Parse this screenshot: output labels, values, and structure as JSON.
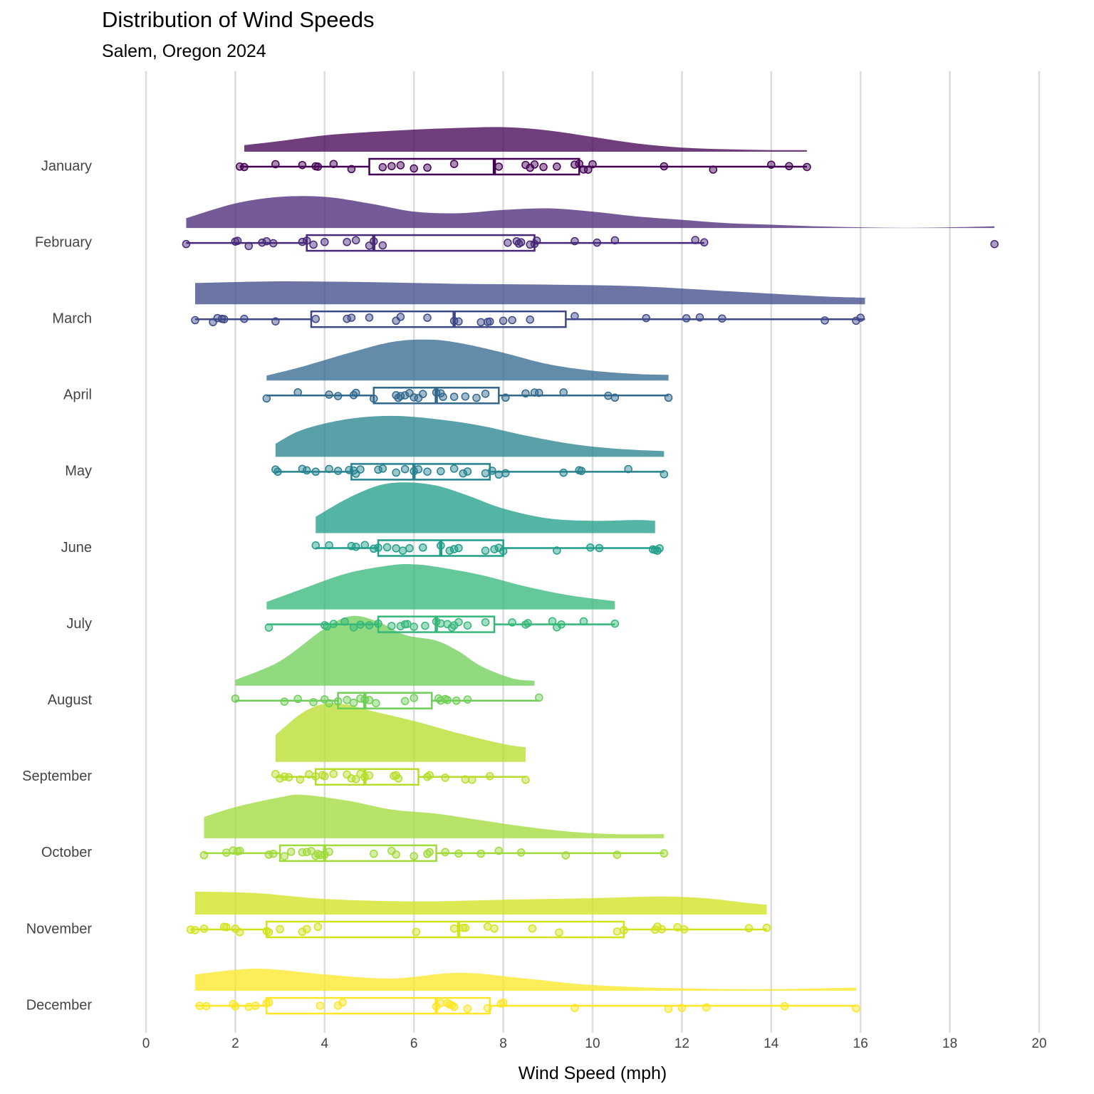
{
  "chart_data": {
    "type": "raincloud",
    "title": "Distribution of Wind Speeds",
    "subtitle": "Salem, Oregon 2024",
    "xlabel": "Wind Speed (mph)",
    "ylabel": "",
    "xlim": [
      0,
      20
    ],
    "xticks": [
      0,
      2,
      4,
      6,
      8,
      10,
      12,
      14,
      16,
      18,
      20
    ],
    "grid": "vertical",
    "legend": "none",
    "series": [
      {
        "name": "January",
        "color": "#440154",
        "box": {
          "min": 2.1,
          "q1": 5.0,
          "median": 7.8,
          "q3": 9.7,
          "max": 14.8
        },
        "density": [
          [
            2.2,
            0.08
          ],
          [
            3,
            0.13
          ],
          [
            4,
            0.2
          ],
          [
            5,
            0.24
          ],
          [
            6,
            0.27
          ],
          [
            7,
            0.29
          ],
          [
            8,
            0.3
          ],
          [
            9,
            0.26
          ],
          [
            10,
            0.18
          ],
          [
            11,
            0.1
          ],
          [
            12,
            0.05
          ],
          [
            13,
            0.03
          ],
          [
            14,
            0.02
          ],
          [
            14.8,
            0.02
          ]
        ],
        "points": [
          2.1,
          2.2,
          2.9,
          3.5,
          3.8,
          3.85,
          4.2,
          4.6,
          5.3,
          5.5,
          5.7,
          6.0,
          6.3,
          6.9,
          7.9,
          8.5,
          8.6,
          8.7,
          8.9,
          9.2,
          9.6,
          9.7,
          9.8,
          9.9,
          10.0,
          11.6,
          12.7,
          14.0,
          14.4,
          14.8
        ]
      },
      {
        "name": "February",
        "color": "#482878",
        "box": {
          "min": 0.9,
          "q1": 3.6,
          "median": 5.1,
          "q3": 8.7,
          "max": 12.5
        },
        "density": [
          [
            0.9,
            0.12
          ],
          [
            2,
            0.3
          ],
          [
            3,
            0.38
          ],
          [
            4,
            0.38
          ],
          [
            5,
            0.3
          ],
          [
            6,
            0.2
          ],
          [
            7,
            0.18
          ],
          [
            8,
            0.22
          ],
          [
            9,
            0.24
          ],
          [
            10,
            0.2
          ],
          [
            11,
            0.14
          ],
          [
            12,
            0.1
          ],
          [
            13,
            0.06
          ],
          [
            14,
            0.04
          ],
          [
            15,
            0.02
          ],
          [
            16,
            0.008
          ],
          [
            17,
            0.002
          ],
          [
            18,
            0.008
          ],
          [
            19,
            0.02
          ]
        ],
        "points": [
          0.9,
          2.0,
          2.05,
          2.3,
          2.6,
          2.7,
          2.85,
          3.5,
          3.6,
          3.75,
          4.0,
          4.5,
          4.7,
          5.0,
          5.1,
          5.3,
          8.1,
          8.3,
          8.35,
          8.4,
          8.6,
          8.7,
          8.75,
          9.6,
          10.1,
          10.5,
          12.3,
          12.5,
          19.0
        ]
      },
      {
        "name": "March",
        "color": "#3e4989",
        "box": {
          "min": 1.1,
          "q1": 3.7,
          "median": 6.9,
          "q3": 9.4,
          "max": 16.1
        },
        "density": [
          [
            1.1,
            0.26
          ],
          [
            3,
            0.28
          ],
          [
            5,
            0.27
          ],
          [
            7,
            0.25
          ],
          [
            9,
            0.24
          ],
          [
            11,
            0.22
          ],
          [
            13,
            0.16
          ],
          [
            15,
            0.1
          ],
          [
            16.1,
            0.08
          ]
        ],
        "points": [
          1.1,
          1.5,
          1.6,
          1.7,
          1.75,
          2.2,
          2.9,
          3.8,
          4.5,
          4.6,
          5.0,
          5.6,
          5.7,
          6.3,
          6.9,
          7.0,
          7.5,
          7.65,
          7.7,
          8.0,
          8.2,
          8.6,
          9.6,
          11.2,
          12.1,
          12.4,
          12.9,
          15.2,
          15.9,
          16.0
        ]
      },
      {
        "name": "April",
        "color": "#31688e",
        "box": {
          "min": 2.7,
          "q1": 5.1,
          "median": 6.5,
          "q3": 7.9,
          "max": 11.7
        },
        "density": [
          [
            2.7,
            0.06
          ],
          [
            3.5,
            0.17
          ],
          [
            4.5,
            0.33
          ],
          [
            5.5,
            0.47
          ],
          [
            6.3,
            0.5
          ],
          [
            7,
            0.46
          ],
          [
            8,
            0.34
          ],
          [
            9,
            0.2
          ],
          [
            10,
            0.12
          ],
          [
            11,
            0.08
          ],
          [
            11.7,
            0.07
          ]
        ],
        "points": [
          2.7,
          3.4,
          4.1,
          4.3,
          4.65,
          4.7,
          5.1,
          5.6,
          5.65,
          5.7,
          5.8,
          5.9,
          6.0,
          6.1,
          6.2,
          6.5,
          6.6,
          6.65,
          6.9,
          7.15,
          7.4,
          7.6,
          8.05,
          8.5,
          8.7,
          8.8,
          9.35,
          10.35,
          10.5,
          11.7
        ]
      },
      {
        "name": "May",
        "color": "#26828e",
        "box": {
          "min": 2.9,
          "q1": 4.6,
          "median": 6.0,
          "q3": 7.7,
          "max": 11.6
        },
        "density": [
          [
            2.9,
            0.16
          ],
          [
            3.5,
            0.33
          ],
          [
            4.5,
            0.46
          ],
          [
            5.5,
            0.5
          ],
          [
            6.5,
            0.46
          ],
          [
            7.5,
            0.38
          ],
          [
            8.5,
            0.26
          ],
          [
            9.5,
            0.16
          ],
          [
            10.5,
            0.1
          ],
          [
            11.6,
            0.07
          ]
        ],
        "points": [
          2.9,
          2.95,
          3.5,
          3.6,
          3.8,
          4.1,
          4.3,
          4.55,
          4.65,
          4.7,
          4.8,
          5.2,
          5.3,
          5.6,
          5.8,
          6.0,
          6.1,
          6.3,
          6.6,
          6.9,
          7.1,
          7.2,
          7.6,
          7.75,
          7.9,
          8.05,
          9.35,
          9.7,
          9.75,
          10.8,
          11.6
        ]
      },
      {
        "name": "June",
        "color": "#1f9e89",
        "box": {
          "min": 3.8,
          "q1": 5.2,
          "median": 6.6,
          "q3": 8.0,
          "max": 11.5
        },
        "density": [
          [
            3.8,
            0.2
          ],
          [
            4.5,
            0.42
          ],
          [
            5.2,
            0.58
          ],
          [
            5.8,
            0.62
          ],
          [
            6.5,
            0.58
          ],
          [
            7.2,
            0.46
          ],
          [
            8,
            0.3
          ],
          [
            9,
            0.18
          ],
          [
            10,
            0.15
          ],
          [
            11,
            0.16
          ],
          [
            11.4,
            0.15
          ]
        ],
        "points": [
          3.8,
          4.1,
          4.6,
          4.7,
          4.9,
          5.1,
          5.2,
          5.4,
          5.6,
          5.75,
          5.9,
          6.2,
          6.6,
          6.8,
          6.9,
          7.0,
          7.6,
          7.8,
          7.9,
          8.0,
          9.2,
          9.95,
          10.15,
          11.35,
          11.4,
          11.45,
          11.5
        ]
      },
      {
        "name": "July",
        "color": "#35b779",
        "box": {
          "min": 2.7,
          "q1": 5.2,
          "median": 6.5,
          "q3": 7.8,
          "max": 10.5
        },
        "density": [
          [
            2.7,
            0.09
          ],
          [
            3.5,
            0.25
          ],
          [
            4.5,
            0.44
          ],
          [
            5.5,
            0.54
          ],
          [
            6,
            0.55
          ],
          [
            6.5,
            0.52
          ],
          [
            7.5,
            0.42
          ],
          [
            8.5,
            0.28
          ],
          [
            9.5,
            0.17
          ],
          [
            10.5,
            0.1
          ]
        ],
        "points": [
          2.75,
          4.0,
          4.05,
          4.2,
          4.45,
          4.65,
          4.8,
          5.0,
          5.2,
          5.5,
          5.7,
          5.8,
          5.85,
          6.0,
          6.25,
          6.5,
          6.6,
          6.75,
          6.85,
          6.9,
          7.0,
          7.2,
          7.6,
          8.2,
          8.5,
          8.55,
          9.1,
          9.2,
          9.3,
          9.8,
          10.5
        ]
      },
      {
        "name": "August",
        "color": "#6ece58",
        "box": {
          "min": 2.0,
          "q1": 4.3,
          "median": 4.9,
          "q3": 6.4,
          "max": 8.8
        },
        "density": [
          [
            2,
            0.07
          ],
          [
            3,
            0.3
          ],
          [
            4,
            0.7
          ],
          [
            4.6,
            0.85
          ],
          [
            5.2,
            0.78
          ],
          [
            5.8,
            0.62
          ],
          [
            6.5,
            0.55
          ],
          [
            7,
            0.42
          ],
          [
            7.5,
            0.24
          ],
          [
            8.2,
            0.09
          ],
          [
            8.7,
            0.06
          ]
        ],
        "points": [
          2.0,
          3.1,
          3.4,
          3.75,
          4.0,
          4.1,
          4.3,
          4.5,
          4.65,
          4.8,
          4.9,
          5.0,
          5.15,
          5.8,
          6.0,
          6.55,
          6.6,
          6.7,
          6.75,
          6.95,
          7.2,
          8.8
        ]
      },
      {
        "name": "September",
        "color": "#b5de2b",
        "box": {
          "min": 2.9,
          "q1": 3.8,
          "median": 4.9,
          "q3": 6.1,
          "max": 8.5
        },
        "density": [
          [
            2.9,
            0.33
          ],
          [
            3.5,
            0.6
          ],
          [
            4,
            0.71
          ],
          [
            4.5,
            0.7
          ],
          [
            5,
            0.63
          ],
          [
            6,
            0.5
          ],
          [
            7,
            0.35
          ],
          [
            8,
            0.22
          ],
          [
            8.5,
            0.18
          ]
        ],
        "points": [
          2.9,
          3.0,
          3.1,
          3.2,
          3.45,
          3.65,
          3.8,
          3.95,
          4.0,
          4.2,
          4.5,
          4.6,
          4.7,
          4.8,
          4.9,
          5.0,
          5.55,
          5.6,
          5.65,
          6.3,
          6.35,
          6.7,
          7.15,
          7.3,
          7.7,
          8.5
        ]
      },
      {
        "name": "October",
        "color": "#a0da39",
        "box": {
          "min": 1.3,
          "q1": 3.0,
          "median": 4.0,
          "q3": 6.5,
          "max": 11.6
        },
        "density": [
          [
            1.3,
            0.26
          ],
          [
            2,
            0.38
          ],
          [
            3,
            0.5
          ],
          [
            3.5,
            0.53
          ],
          [
            4.5,
            0.46
          ],
          [
            5.5,
            0.35
          ],
          [
            6.5,
            0.3
          ],
          [
            7.5,
            0.22
          ],
          [
            8.5,
            0.14
          ],
          [
            9.5,
            0.08
          ],
          [
            10.5,
            0.05
          ],
          [
            11.6,
            0.05
          ]
        ],
        "points": [
          1.3,
          1.8,
          1.95,
          2.05,
          2.1,
          2.75,
          2.85,
          3.1,
          3.25,
          3.5,
          3.6,
          3.7,
          3.8,
          3.85,
          3.9,
          4.0,
          4.1,
          5.1,
          5.5,
          5.6,
          6.0,
          6.3,
          6.35,
          6.7,
          7.0,
          7.5,
          7.9,
          8.4,
          9.4,
          10.55,
          11.6
        ]
      },
      {
        "name": "November",
        "color": "#d2e21b",
        "box": {
          "min": 1.0,
          "q1": 2.7,
          "median": 7.0,
          "q3": 10.7,
          "max": 13.9
        },
        "density": [
          [
            1.1,
            0.28
          ],
          [
            2.5,
            0.26
          ],
          [
            4,
            0.19
          ],
          [
            6,
            0.16
          ],
          [
            8,
            0.18
          ],
          [
            10,
            0.2
          ],
          [
            11.5,
            0.22
          ],
          [
            12.5,
            0.2
          ],
          [
            13.5,
            0.14
          ],
          [
            13.9,
            0.12
          ]
        ],
        "points": [
          1.0,
          1.1,
          1.3,
          1.75,
          1.8,
          2.0,
          2.1,
          2.7,
          2.75,
          3.0,
          3.5,
          3.6,
          3.85,
          6.05,
          6.9,
          7.1,
          7.15,
          7.65,
          7.8,
          8.65,
          9.25,
          10.55,
          10.7,
          11.4,
          11.45,
          11.55,
          11.9,
          12.05,
          13.5,
          13.9
        ]
      },
      {
        "name": "December",
        "color": "#fde725",
        "box": {
          "min": 1.1,
          "q1": 2.7,
          "median": 6.5,
          "q3": 7.7,
          "max": 15.9
        },
        "density": [
          [
            1.1,
            0.2
          ],
          [
            2.5,
            0.27
          ],
          [
            4,
            0.2
          ],
          [
            5.5,
            0.15
          ],
          [
            7,
            0.22
          ],
          [
            8.5,
            0.15
          ],
          [
            10,
            0.07
          ],
          [
            12,
            0.03
          ],
          [
            14,
            0.02
          ],
          [
            15.9,
            0.04
          ]
        ],
        "points": [
          1.2,
          1.35,
          1.95,
          2.0,
          2.3,
          2.45,
          2.7,
          2.75,
          3.9,
          4.3,
          4.4,
          6.5,
          6.6,
          6.75,
          6.8,
          6.85,
          6.9,
          7.2,
          7.65,
          7.95,
          8.0,
          9.6,
          11.7,
          12.0,
          12.55,
          14.3,
          15.9
        ]
      }
    ]
  }
}
